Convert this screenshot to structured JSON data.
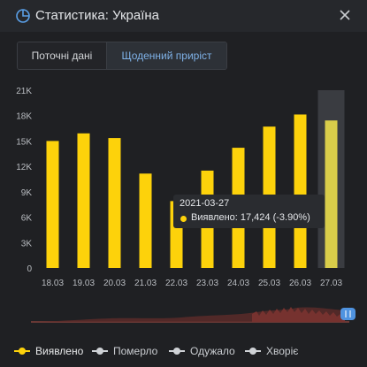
{
  "header": {
    "title": "Статистика: Україна"
  },
  "tabs": [
    {
      "label": "Поточні дані",
      "active": false
    },
    {
      "label": "Щоденний приріст",
      "active": true
    }
  ],
  "tooltip": {
    "date": "2021-03-27",
    "text": "Виявлено: 17,424 (-3.90%)"
  },
  "legend": [
    {
      "label": "Виявлено",
      "color": "#fdd20b",
      "active": true
    },
    {
      "label": "Померло",
      "color": "#cfd2d6",
      "active": false
    },
    {
      "label": "Одужало",
      "color": "#cfd2d6",
      "active": false
    },
    {
      "label": "Хворіє",
      "color": "#cfd2d6",
      "active": false
    }
  ],
  "colors": {
    "bar": "#fdd20b",
    "bar_highlight": "#d9cd4a",
    "background": "#1f2023",
    "accent": "#7fb2e8"
  },
  "icons": {
    "header": "pie-chart-icon",
    "close": "close-icon",
    "navigator_handle": "range-handle-icon"
  },
  "chart_data": {
    "type": "bar",
    "categories": [
      "18.03",
      "19.03",
      "20.03",
      "21.03",
      "22.03",
      "23.03",
      "24.03",
      "25.03",
      "26.03",
      "27.03"
    ],
    "series": [
      {
        "name": "Виявлено",
        "values": [
          15000,
          15900,
          15350,
          11150,
          7900,
          11500,
          14200,
          16700,
          18130,
          17424
        ]
      }
    ],
    "ylim": [
      0,
      21000
    ],
    "y_ticks": [
      0,
      3000,
      6000,
      9000,
      12000,
      15000,
      18000,
      21000
    ],
    "y_tick_labels": [
      "0",
      "3K",
      "6K",
      "9K",
      "12K",
      "15K",
      "18K",
      "21K"
    ],
    "highlighted_category": "27.03",
    "grid": false
  }
}
